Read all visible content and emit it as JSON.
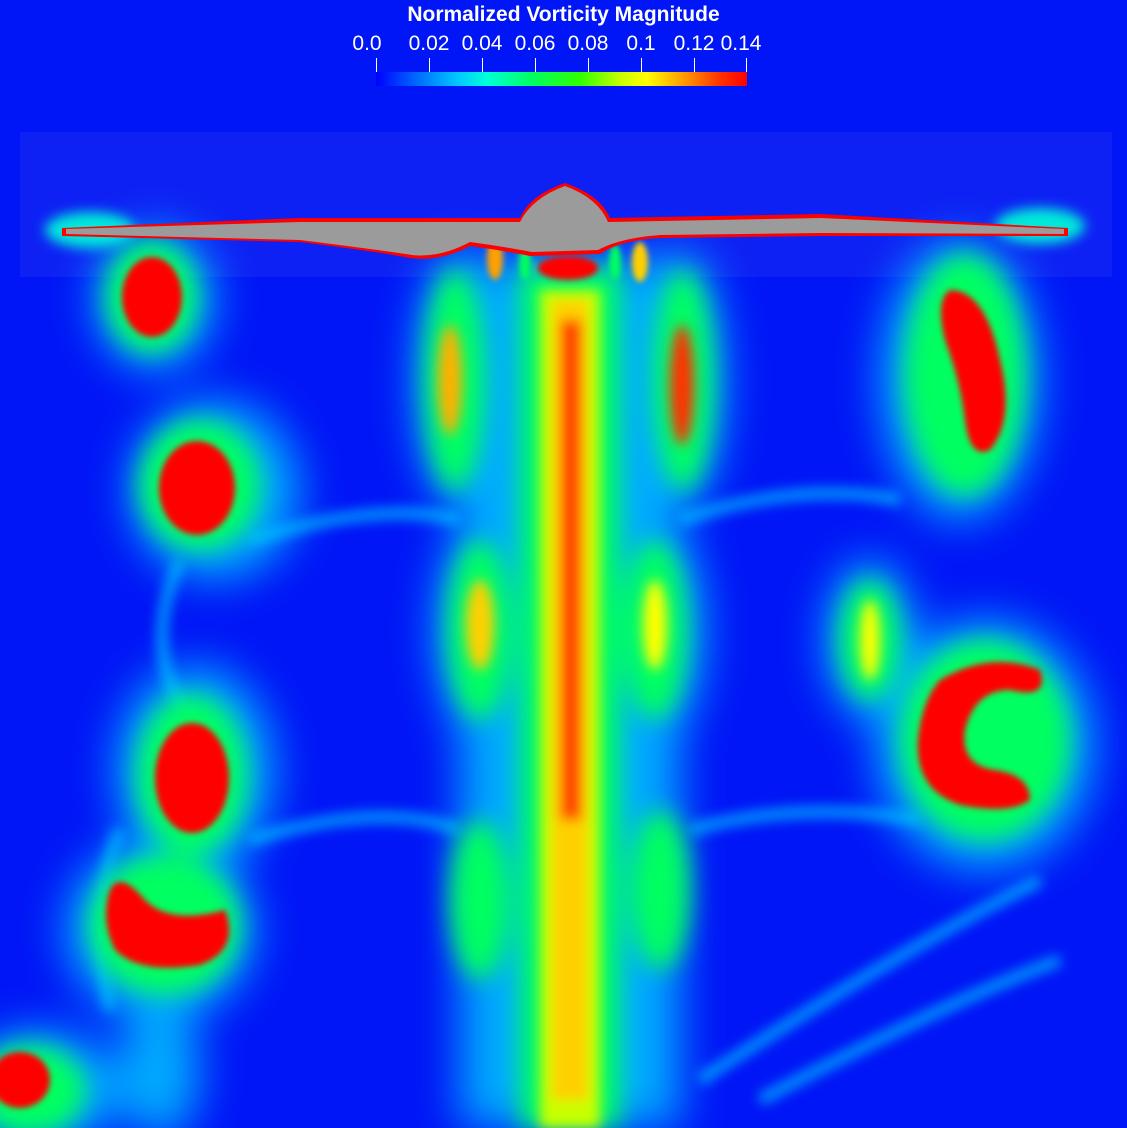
{
  "legend": {
    "title": "Normalized Vorticity Magnitude",
    "ticks": [
      "0.0",
      "0.02",
      "0.04",
      "0.06",
      "0.08",
      "0.1",
      "0.12",
      "0.14"
    ],
    "colormap": [
      "#0000ff",
      "#00c8ff",
      "#00ff60",
      "#ffff00",
      "#ff9000",
      "#ff0000"
    ]
  },
  "colors": {
    "background": "#0016f6",
    "blade": "#9b9b9b",
    "high": "#ff0000"
  }
}
